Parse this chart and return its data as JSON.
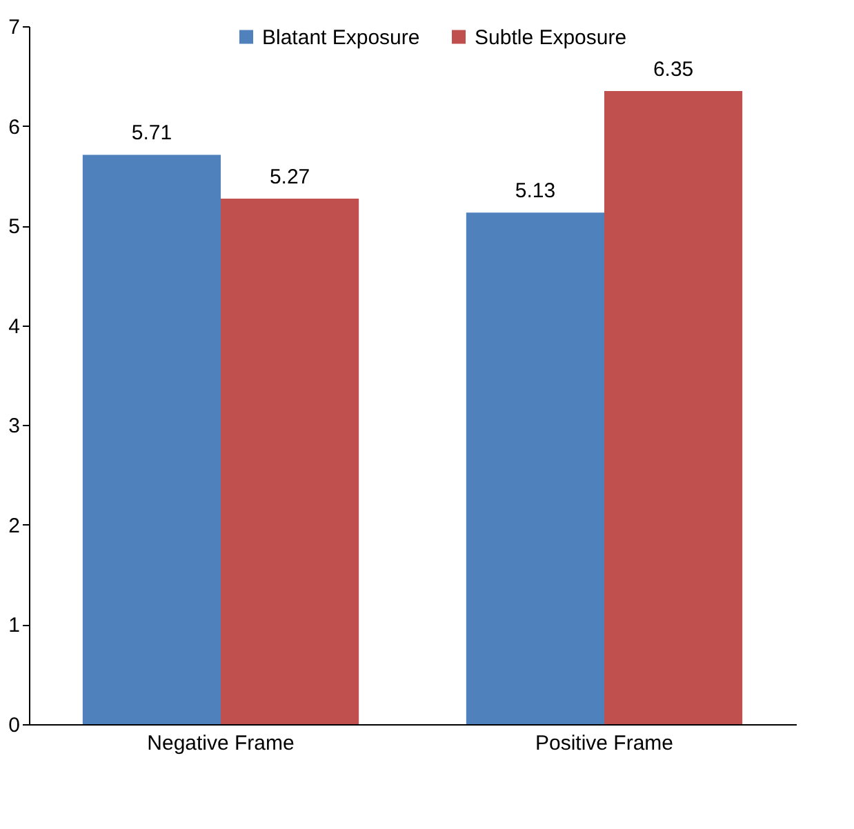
{
  "chart_data": {
    "type": "bar",
    "categories": [
      "Negative Frame",
      "Positive Frame"
    ],
    "series": [
      {
        "name": "Blatant Exposure",
        "color": "#4f81bd",
        "values": [
          5.71,
          5.13
        ]
      },
      {
        "name": "Subtle Exposure",
        "color": "#c0504d",
        "values": [
          5.27,
          6.35
        ]
      }
    ],
    "ylim": [
      0,
      7
    ],
    "yticks": [
      0,
      1,
      2,
      3,
      4,
      5,
      6,
      7
    ],
    "grid": false,
    "legend": "top",
    "data_labels": true
  }
}
